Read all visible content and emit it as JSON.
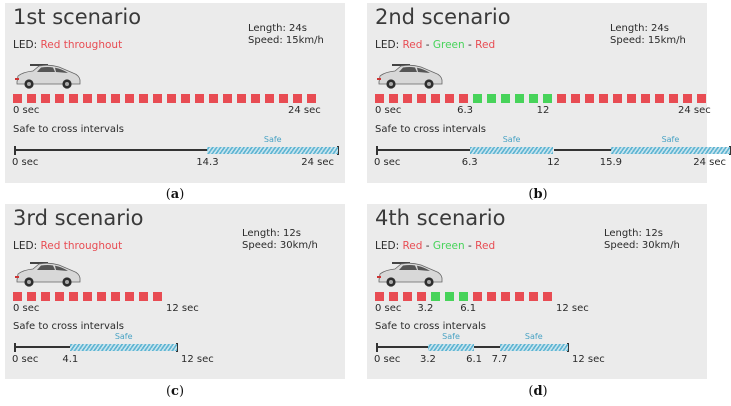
{
  "panels": [
    {
      "title": "1st  scenario",
      "led_prefix": "LED: ",
      "led_parts": [
        {
          "text": "Red throughout",
          "color": "#e84c53"
        }
      ],
      "length": "Length: 24s",
      "speed": "Speed: 15km/h",
      "led_squares": [
        "r",
        "r",
        "r",
        "r",
        "r",
        "r",
        "r",
        "r",
        "r",
        "r",
        "r",
        "r",
        "r",
        "r",
        "r",
        "r",
        "r",
        "r",
        "r",
        "r",
        "r",
        "r"
      ],
      "led_ticks": [
        {
          "text": "0 sec",
          "pos": 0
        },
        {
          "text": "24 sec",
          "pos": 24
        }
      ],
      "safe_title": "Safe to cross intervals",
      "duration": 24,
      "safe_intervals": [
        {
          "start": 14.3,
          "end": 24,
          "label": "Safe"
        }
      ],
      "timeline_ticks": [
        {
          "text": "0 sec",
          "pos": 0
        },
        {
          "text": "14.3",
          "pos": 14.3
        },
        {
          "text": "24 sec",
          "pos": 24
        }
      ],
      "caption": "(a)",
      "caption_letter": "a"
    },
    {
      "title": "2nd  scenario",
      "led_prefix": "LED: ",
      "led_parts": [
        {
          "text": "Red",
          "color": "#e84c53"
        },
        {
          "text": " - ",
          "color": "#2a2a2a"
        },
        {
          "text": "Green",
          "color": "#47d35a"
        },
        {
          "text": " - ",
          "color": "#2a2a2a"
        },
        {
          "text": "Red",
          "color": "#e84c53"
        }
      ],
      "length": "Length: 24s",
      "speed": "Speed: 15km/h",
      "led_squares": [
        "r",
        "r",
        "r",
        "r",
        "r",
        "r",
        "r",
        "g",
        "g",
        "g",
        "g",
        "g",
        "g",
        "r",
        "r",
        "r",
        "r",
        "r",
        "r",
        "r",
        "r",
        "r",
        "r",
        "r"
      ],
      "led_ticks": [
        {
          "text": "0 sec",
          "pos": 0
        },
        {
          "text": "6.3",
          "pos": 6.3
        },
        {
          "text": "12",
          "pos": 12
        },
        {
          "text": "24 sec",
          "pos": 24
        }
      ],
      "safe_title": "Safe to cross intervals",
      "duration": 24,
      "safe_intervals": [
        {
          "start": 6.3,
          "end": 12,
          "label": "Safe"
        },
        {
          "start": 15.9,
          "end": 24,
          "label": "Safe"
        }
      ],
      "timeline_ticks": [
        {
          "text": "0 sec",
          "pos": 0
        },
        {
          "text": "6.3",
          "pos": 6.3
        },
        {
          "text": "12",
          "pos": 12
        },
        {
          "text": "15.9",
          "pos": 15.9
        },
        {
          "text": "24 sec",
          "pos": 24
        }
      ],
      "caption": "(b)",
      "caption_letter": "b"
    },
    {
      "title": "3rd  scenario",
      "led_prefix": "LED: ",
      "led_parts": [
        {
          "text": "Red throughout",
          "color": "#e84c53"
        }
      ],
      "length": "Length: 12s",
      "speed": "Speed: 30km/h",
      "led_squares": [
        "r",
        "r",
        "r",
        "r",
        "r",
        "r",
        "r",
        "r",
        "r",
        "r",
        "r"
      ],
      "led_ticks": [
        {
          "text": "0 sec",
          "pos": 0
        },
        {
          "text": "12 sec",
          "pos": 12
        }
      ],
      "safe_title": "Safe to cross intervals",
      "duration": 12,
      "safe_intervals": [
        {
          "start": 4.1,
          "end": 12,
          "label": "Safe"
        }
      ],
      "timeline_ticks": [
        {
          "text": "0 sec",
          "pos": 0
        },
        {
          "text": "4.1",
          "pos": 4.1
        },
        {
          "text": "12 sec",
          "pos": 12
        }
      ],
      "caption": "(c)",
      "caption_letter": "c"
    },
    {
      "title": "4th  scenario",
      "led_prefix": "LED: ",
      "led_parts": [
        {
          "text": "Red",
          "color": "#e84c53"
        },
        {
          "text": " - ",
          "color": "#2a2a2a"
        },
        {
          "text": "Green",
          "color": "#47d35a"
        },
        {
          "text": " - ",
          "color": "#2a2a2a"
        },
        {
          "text": "Red",
          "color": "#e84c53"
        }
      ],
      "length": "Length: 12s",
      "speed": "Speed: 30km/h",
      "led_squares": [
        "r",
        "r",
        "r",
        "r",
        "g",
        "g",
        "g",
        "r",
        "r",
        "r",
        "r",
        "r",
        "r"
      ],
      "led_ticks": [
        {
          "text": "0 sec",
          "pos": 0
        },
        {
          "text": "3.2",
          "pos": 3.2
        },
        {
          "text": "6.1",
          "pos": 6.1
        },
        {
          "text": "12 sec",
          "pos": 12
        }
      ],
      "safe_title": "Safe to cross intervals",
      "duration": 12,
      "safe_intervals": [
        {
          "start": 3.2,
          "end": 6.1,
          "label": "Safe"
        },
        {
          "start": 7.7,
          "end": 12,
          "label": "Safe"
        }
      ],
      "timeline_ticks": [
        {
          "text": "0 sec",
          "pos": 0
        },
        {
          "text": "3.2",
          "pos": 3.2
        },
        {
          "text": "6.1",
          "pos": 6.1
        },
        {
          "text": "7.7",
          "pos": 7.7
        },
        {
          "text": "12 sec",
          "pos": 12
        }
      ],
      "caption": "(d)",
      "caption_letter": "d"
    }
  ]
}
